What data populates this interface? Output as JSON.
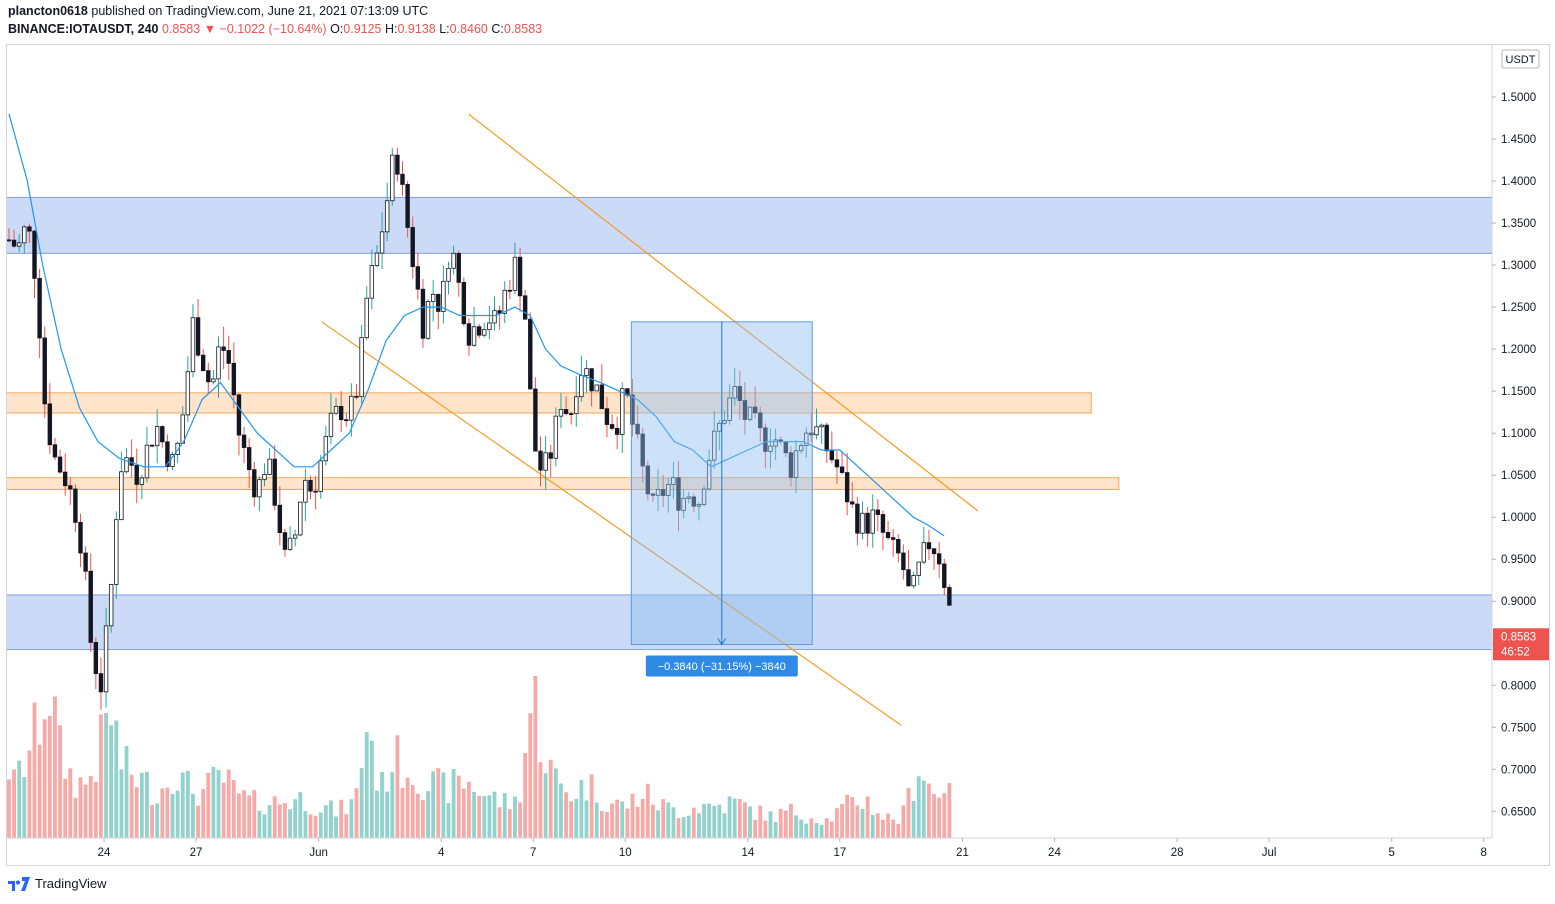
{
  "header": {
    "author": "plancton0618",
    "published_text": "published on TradingView.com, June 21, 2021 07:13:09 UTC",
    "symbol": "BINANCE:IOTAUSDT, 240",
    "last": "0.8583",
    "change_arrow": "▼",
    "change": "−0.1022 (−10.64%)",
    "open_label": "O:",
    "open": "0.9125",
    "high_label": "H:",
    "high": "0.9138",
    "low_label": "L:",
    "low": "0.8460",
    "close_label": "C:",
    "close": "0.8583"
  },
  "price_scale": {
    "currency": "USDT",
    "current_price": "0.8583",
    "countdown": "46:52"
  },
  "measure_label": "−0.3840 (−31.15%) −3840",
  "footer": {
    "brand": "TradingView"
  },
  "colors": {
    "up": "#26a69a",
    "down": "#ef5350",
    "candle_body_up": "#ffffff",
    "candle_body_down": "#131722",
    "ma": "#2196f3",
    "channel": "#f59b23",
    "blue_zone": "#a8c1f0",
    "orange_zone": "#fbd2a8",
    "measure": "#90bff0",
    "price_tag": "#ef5350"
  },
  "chart_data": {
    "type": "candlestick",
    "interval": "240",
    "ylim": [
      0.61,
      1.53
    ],
    "yticks": [
      "1.5000",
      "1.4500",
      "1.4000",
      "1.3500",
      "1.3000",
      "1.2500",
      "1.2000",
      "1.1500",
      "1.1000",
      "1.0500",
      "1.0000",
      "0.9500",
      "0.9000",
      "0.8500",
      "0.8000",
      "0.7500",
      "0.7000",
      "0.6500"
    ],
    "xticks": [
      {
        "label": "24",
        "day": 24
      },
      {
        "label": "27",
        "day": 27
      },
      {
        "label": "Jun",
        "day": 31
      },
      {
        "label": "4",
        "day": 35
      },
      {
        "label": "7",
        "day": 38
      },
      {
        "label": "10",
        "day": 41
      },
      {
        "label": "14",
        "day": 45
      },
      {
        "label": "17",
        "day": 48
      },
      {
        "label": "21",
        "day": 52
      },
      {
        "label": "24",
        "day": 55
      },
      {
        "label": "28",
        "day": 59
      },
      {
        "label": "Jul",
        "day": 62
      },
      {
        "label": "5",
        "day": 66
      },
      {
        "label": "8",
        "day": 69
      }
    ],
    "close_path": [
      [
        20.9,
        1.33
      ],
      [
        21.2,
        1.32
      ],
      [
        21.5,
        1.35
      ],
      [
        21.8,
        1.28
      ],
      [
        22.1,
        1.12
      ],
      [
        22.4,
        1.07
      ],
      [
        22.7,
        1.05
      ],
      [
        23.0,
        1.02
      ],
      [
        23.3,
        0.96
      ],
      [
        23.6,
        0.84
      ],
      [
        23.9,
        0.8
      ],
      [
        24.2,
        0.9
      ],
      [
        24.5,
        1.06
      ],
      [
        24.8,
        1.07
      ],
      [
        25.1,
        1.05
      ],
      [
        25.4,
        1.08
      ],
      [
        25.7,
        1.11
      ],
      [
        26.0,
        1.08
      ],
      [
        26.3,
        1.06
      ],
      [
        26.6,
        1.13
      ],
      [
        26.9,
        1.23
      ],
      [
        27.2,
        1.19
      ],
      [
        27.5,
        1.15
      ],
      [
        27.8,
        1.21
      ],
      [
        28.1,
        1.18
      ],
      [
        28.4,
        1.1
      ],
      [
        28.7,
        1.06
      ],
      [
        29.0,
        1.03
      ],
      [
        29.3,
        1.07
      ],
      [
        29.6,
        1.02
      ],
      [
        29.9,
        0.95
      ],
      [
        30.2,
        0.97
      ],
      [
        30.5,
        1.05
      ],
      [
        30.8,
        1.03
      ],
      [
        31.1,
        1.07
      ],
      [
        31.4,
        1.11
      ],
      [
        31.7,
        1.13
      ],
      [
        32.0,
        1.12
      ],
      [
        32.3,
        1.16
      ],
      [
        32.6,
        1.27
      ],
      [
        32.9,
        1.31
      ],
      [
        33.2,
        1.37
      ],
      [
        33.5,
        1.44
      ],
      [
        33.8,
        1.37
      ],
      [
        34.1,
        1.3
      ],
      [
        34.4,
        1.23
      ],
      [
        34.7,
        1.27
      ],
      [
        35.0,
        1.25
      ],
      [
        35.3,
        1.33
      ],
      [
        35.6,
        1.27
      ],
      [
        35.9,
        1.22
      ],
      [
        36.2,
        1.23
      ],
      [
        36.5,
        1.24
      ],
      [
        36.8,
        1.23
      ],
      [
        37.1,
        1.27
      ],
      [
        37.4,
        1.3
      ],
      [
        37.7,
        1.26
      ],
      [
        38.0,
        1.09
      ],
      [
        38.3,
        1.05
      ],
      [
        38.6,
        1.08
      ],
      [
        38.9,
        1.14
      ],
      [
        39.2,
        1.12
      ],
      [
        39.5,
        1.18
      ],
      [
        39.8,
        1.17
      ],
      [
        40.1,
        1.15
      ],
      [
        40.4,
        1.12
      ],
      [
        40.7,
        1.11
      ],
      [
        41.0,
        1.15
      ],
      [
        41.3,
        1.1
      ],
      [
        41.6,
        1.05
      ],
      [
        41.9,
        1.01
      ],
      [
        42.2,
        1.03
      ],
      [
        42.5,
        1.04
      ],
      [
        42.8,
        1.02
      ],
      [
        43.1,
        1.03
      ],
      [
        43.4,
        1.02
      ],
      [
        43.7,
        1.07
      ],
      [
        44.0,
        1.1
      ],
      [
        44.3,
        1.13
      ],
      [
        44.6,
        1.15
      ],
      [
        44.9,
        1.12
      ],
      [
        45.2,
        1.11
      ],
      [
        45.5,
        1.09
      ],
      [
        45.8,
        1.1
      ],
      [
        46.1,
        1.08
      ],
      [
        46.4,
        1.06
      ],
      [
        46.7,
        1.09
      ],
      [
        47.0,
        1.11
      ],
      [
        47.3,
        1.1
      ],
      [
        47.6,
        1.08
      ],
      [
        47.9,
        1.06
      ],
      [
        48.2,
        1.03
      ],
      [
        48.5,
        1.0
      ],
      [
        48.8,
        0.99
      ],
      [
        49.1,
        1.0
      ],
      [
        49.4,
        0.98
      ],
      [
        49.7,
        0.96
      ],
      [
        50.0,
        0.95
      ],
      [
        50.3,
        0.9
      ],
      [
        50.6,
        0.94
      ],
      [
        50.9,
        0.97
      ],
      [
        51.2,
        0.96
      ],
      [
        51.5,
        0.91
      ],
      [
        51.7,
        0.858
      ]
    ],
    "ma_path": [
      [
        20.9,
        1.48
      ],
      [
        21.5,
        1.4
      ],
      [
        22.0,
        1.3
      ],
      [
        22.6,
        1.2
      ],
      [
        23.2,
        1.13
      ],
      [
        23.8,
        1.09
      ],
      [
        24.5,
        1.07
      ],
      [
        25.3,
        1.06
      ],
      [
        26.0,
        1.06
      ],
      [
        26.6,
        1.09
      ],
      [
        27.2,
        1.14
      ],
      [
        27.8,
        1.16
      ],
      [
        28.4,
        1.13
      ],
      [
        29.0,
        1.1
      ],
      [
        29.6,
        1.08
      ],
      [
        30.2,
        1.06
      ],
      [
        30.8,
        1.06
      ],
      [
        31.4,
        1.08
      ],
      [
        32.0,
        1.1
      ],
      [
        32.6,
        1.15
      ],
      [
        33.2,
        1.21
      ],
      [
        33.8,
        1.24
      ],
      [
        34.4,
        1.25
      ],
      [
        35.0,
        1.25
      ],
      [
        35.6,
        1.24
      ],
      [
        36.2,
        1.24
      ],
      [
        36.8,
        1.24
      ],
      [
        37.4,
        1.25
      ],
      [
        37.9,
        1.24
      ],
      [
        38.4,
        1.2
      ],
      [
        38.9,
        1.18
      ],
      [
        39.5,
        1.17
      ],
      [
        40.2,
        1.16
      ],
      [
        40.8,
        1.15
      ],
      [
        41.4,
        1.14
      ],
      [
        42.0,
        1.12
      ],
      [
        42.6,
        1.09
      ],
      [
        43.2,
        1.08
      ],
      [
        43.8,
        1.06
      ],
      [
        44.4,
        1.07
      ],
      [
        45.0,
        1.08
      ],
      [
        45.6,
        1.09
      ],
      [
        46.2,
        1.09
      ],
      [
        46.8,
        1.09
      ],
      [
        47.4,
        1.08
      ],
      [
        48.0,
        1.08
      ],
      [
        48.6,
        1.06
      ],
      [
        49.2,
        1.04
      ],
      [
        49.8,
        1.02
      ],
      [
        50.4,
        1.0
      ],
      [
        50.9,
        0.99
      ],
      [
        51.4,
        0.978
      ]
    ],
    "volume_peaks": [
      [
        21.0,
        0.28
      ],
      [
        21.4,
        0.42
      ],
      [
        21.8,
        0.6
      ],
      [
        22.2,
        0.88
      ],
      [
        22.6,
        0.45
      ],
      [
        23.0,
        0.32
      ],
      [
        23.4,
        0.3
      ],
      [
        23.8,
        0.45
      ],
      [
        24.2,
        0.73
      ],
      [
        24.6,
        0.4
      ],
      [
        25.0,
        0.35
      ],
      [
        25.4,
        0.3
      ],
      [
        25.8,
        0.25
      ],
      [
        26.3,
        0.4
      ],
      [
        26.6,
        0.3
      ],
      [
        27.2,
        0.25
      ],
      [
        27.8,
        0.35
      ],
      [
        28.3,
        0.25
      ],
      [
        28.8,
        0.2
      ],
      [
        29.6,
        0.2
      ],
      [
        30.4,
        0.22
      ],
      [
        31.0,
        0.18
      ],
      [
        31.6,
        0.15
      ],
      [
        32.2,
        0.2
      ],
      [
        32.6,
        0.68
      ],
      [
        33.0,
        0.25
      ],
      [
        33.4,
        0.45
      ],
      [
        34.0,
        0.38
      ],
      [
        34.6,
        0.3
      ],
      [
        35.2,
        0.28
      ],
      [
        35.8,
        0.32
      ],
      [
        36.4,
        0.25
      ],
      [
        37.0,
        0.2
      ],
      [
        37.5,
        0.2
      ],
      [
        38.0,
        0.82
      ],
      [
        38.4,
        0.45
      ],
      [
        38.8,
        0.3
      ],
      [
        39.2,
        0.25
      ],
      [
        39.8,
        0.3
      ],
      [
        40.4,
        0.2
      ],
      [
        41.0,
        0.18
      ],
      [
        41.6,
        0.25
      ],
      [
        42.2,
        0.18
      ],
      [
        42.8,
        0.15
      ],
      [
        43.4,
        0.18
      ],
      [
        44.0,
        0.18
      ],
      [
        44.6,
        0.2
      ],
      [
        45.2,
        0.15
      ],
      [
        45.8,
        0.12
      ],
      [
        46.4,
        0.15
      ],
      [
        47.0,
        0.12
      ],
      [
        47.6,
        0.1
      ],
      [
        48.2,
        0.18
      ],
      [
        48.8,
        0.22
      ],
      [
        49.4,
        0.12
      ],
      [
        50.0,
        0.1
      ],
      [
        50.6,
        0.42
      ],
      [
        51.2,
        0.2
      ],
      [
        51.6,
        0.4
      ]
    ],
    "zones": [
      {
        "kind": "blue",
        "top": 1.3805,
        "bottom": 1.314,
        "to_day": 70.3
      },
      {
        "kind": "orange",
        "top": 1.148,
        "bottom": 1.124,
        "to_day": 56.2
      },
      {
        "kind": "orange",
        "top": 1.047,
        "bottom": 1.033,
        "to_day": 57.1
      },
      {
        "kind": "blue",
        "top": 0.9075,
        "bottom": 0.8425,
        "to_day": 70.3
      }
    ],
    "channel_lines": [
      {
        "from": [
          35.9,
          1.4795
        ],
        "to": [
          52.5,
          1.0075
        ]
      },
      {
        "from": [
          31.1,
          1.2325
        ],
        "to": [
          50.0,
          0.7525
        ]
      }
    ],
    "measure": {
      "from_day": 41.2,
      "to_day": 47.1,
      "top": 1.2325,
      "bottom": 0.8485
    }
  }
}
